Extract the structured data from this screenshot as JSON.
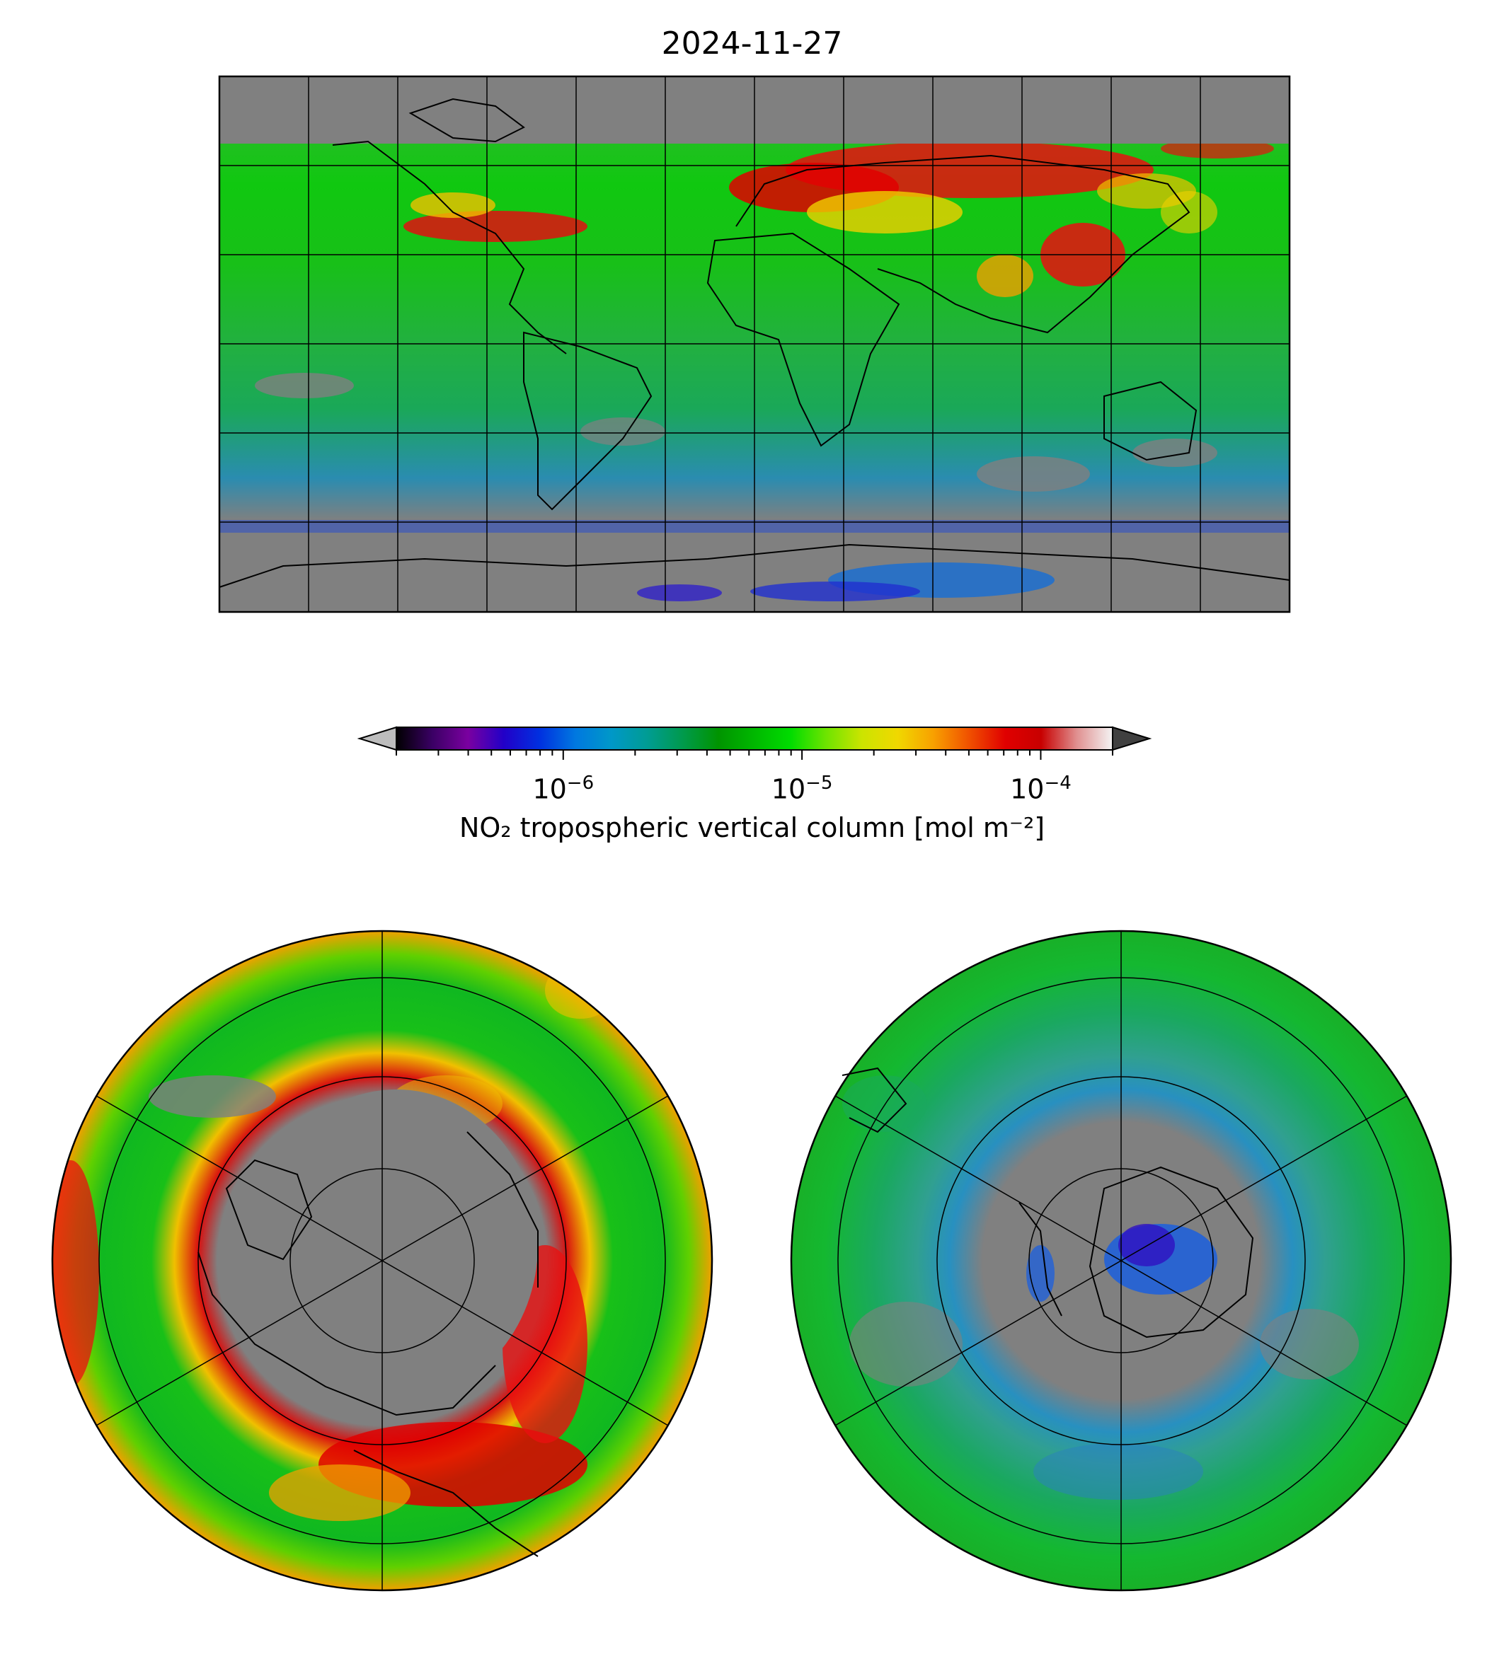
{
  "title": "2024-11-27",
  "colorbar": {
    "label": "NO₂ tropospheric vertical column [mol m⁻²]",
    "scale": "log",
    "range": [
      2e-07,
      0.0002
    ],
    "extend": "both",
    "under_color": "#bdbdbd",
    "over_color": "#404040",
    "major_ticks": [
      {
        "base": "10",
        "exp": "−6",
        "value": 1e-06
      },
      {
        "base": "10",
        "exp": "−5",
        "value": 1e-05
      },
      {
        "base": "10",
        "exp": "−4",
        "value": 0.0001
      }
    ],
    "colormap": [
      "#000000",
      "#3a0064",
      "#7a00a0",
      "#2200c8",
      "#0030e0",
      "#0078e0",
      "#0098c8",
      "#009c94",
      "#009a4c",
      "#009400",
      "#00b800",
      "#00dc00",
      "#6ee400",
      "#cce400",
      "#f0d800",
      "#f8a000",
      "#f05000",
      "#e00000",
      "#c80000",
      "#e09090",
      "#f4f4f4"
    ]
  },
  "maps": {
    "no_data_color": "#808080",
    "global": {
      "projection": "equirectangular",
      "gridlines": true
    },
    "north_polar": {
      "projection": "north polar stereographic",
      "gridlines": true
    },
    "south_polar": {
      "projection": "south polar stereographic",
      "gridlines": true
    }
  }
}
